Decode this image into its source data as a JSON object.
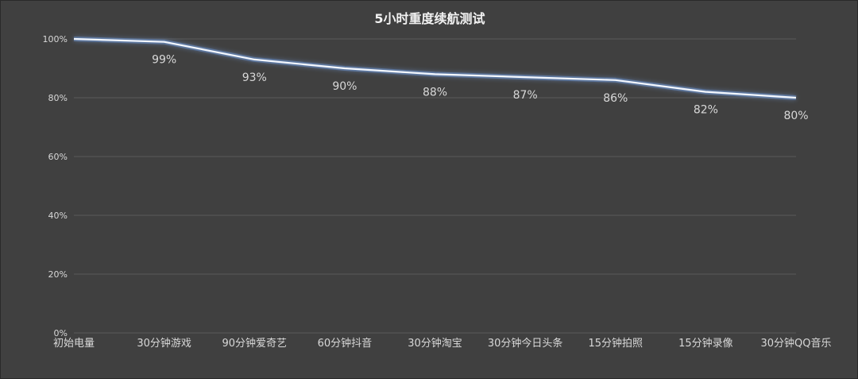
{
  "chart_data": {
    "type": "line",
    "title": "5小时重度续航测试",
    "categories": [
      "初始电量",
      "30分钟游戏",
      "90分钟爱奇艺",
      "60分钟抖音",
      "30分钟淘宝",
      "30分钟今日头条",
      "15分钟拍照",
      "15分钟录像",
      "30分钟QQ音乐"
    ],
    "values": [
      100,
      99,
      93,
      90,
      88,
      87,
      86,
      82,
      80
    ],
    "data_labels": [
      "",
      "99%",
      "93%",
      "90%",
      "88%",
      "87%",
      "86%",
      "82%",
      "80%"
    ],
    "y_ticks": [
      "0%",
      "20%",
      "40%",
      "60%",
      "80%",
      "100%"
    ],
    "ylim": [
      0,
      100
    ],
    "xlabel": "",
    "ylabel": "",
    "grid": true,
    "colors": {
      "background": "#404040",
      "line": "#f4f8ff",
      "glow": "#7fb2ff",
      "grid": "#5a5a5a",
      "text": "#d8d8d8"
    }
  }
}
